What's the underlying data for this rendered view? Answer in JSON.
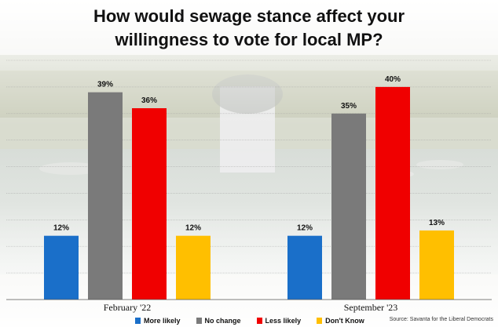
{
  "chart_data": {
    "type": "bar",
    "title_lines": [
      "How would sewage stance affect your",
      "willingness to vote for local MP?"
    ],
    "categories": [
      "February '22",
      "September '23"
    ],
    "series": [
      {
        "name": "More likely",
        "values": [
          12,
          12
        ],
        "color": "#1a6fc9"
      },
      {
        "name": "No change",
        "values": [
          39,
          35
        ],
        "color": "#7a7a7a"
      },
      {
        "name": "Less likely",
        "values": [
          36,
          40
        ],
        "color": "#f00000"
      },
      {
        "name": "Don't Know",
        "values": [
          12,
          13
        ],
        "color": "#ffbf00"
      }
    ],
    "value_suffix": "%",
    "ylim": [
      0,
      45
    ],
    "grid": true,
    "legend_position": "bottom",
    "source": "Source: Savanta for the Liberal Democrats"
  }
}
